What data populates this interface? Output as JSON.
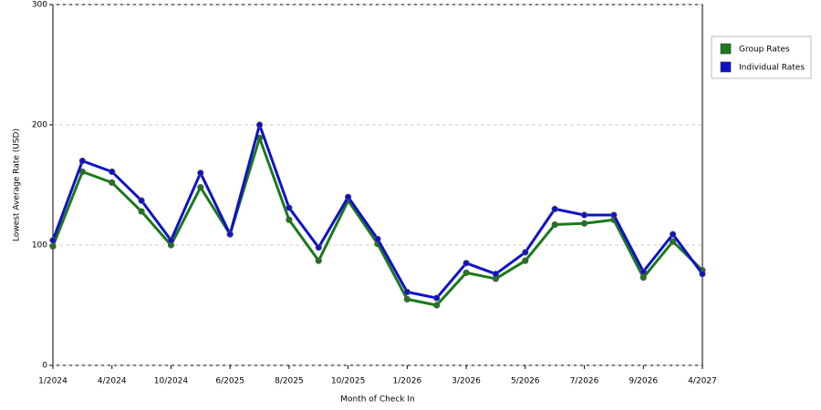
{
  "chart_data": {
    "type": "line",
    "x_label": "Month of Check In",
    "y_label": "Lowest Average Rate (USD)",
    "categories": [
      "1/2024",
      null,
      "4/2024",
      null,
      "10/2024",
      null,
      "6/2025",
      null,
      "8/2025",
      null,
      "10/2025",
      null,
      "1/2026",
      null,
      "3/2026",
      null,
      "5/2026",
      null,
      "7/2026",
      null,
      "9/2026",
      null,
      "4/2027"
    ],
    "series": [
      {
        "name": "Group Rates",
        "color": "#1a7a1a",
        "values": [
          99,
          161,
          152,
          128,
          100,
          148,
          109,
          189,
          121,
          87,
          137,
          101,
          55,
          50,
          77,
          72,
          87,
          117,
          118,
          121,
          73,
          103,
          79
        ]
      },
      {
        "name": "Individual Rates",
        "color": "#1010cc",
        "values": [
          104,
          170,
          161,
          137,
          104,
          160,
          109,
          200,
          131,
          98,
          140,
          105,
          61,
          56,
          85,
          76,
          94,
          130,
          125,
          125,
          78,
          109,
          76
        ]
      }
    ],
    "ylim": [
      0,
      300
    ],
    "yticks": [
      0,
      100,
      200,
      300
    ],
    "grid": true,
    "legend": "right"
  }
}
